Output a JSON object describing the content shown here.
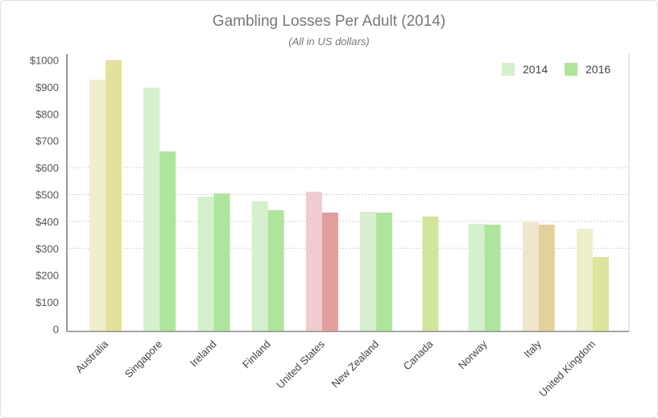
{
  "chart_data": {
    "type": "bar",
    "title": "Gambling Losses Per Adult (2014)",
    "subtitle": "(All in US dollars)",
    "xlabel": "",
    "ylabel": "",
    "ylim": [
      0,
      1000
    ],
    "yticks": [
      "0",
      "$100",
      "$200",
      "$300",
      "$400",
      "$500",
      "$600",
      "$700",
      "$800",
      "$900",
      "$1000"
    ],
    "grid": "dashed horizontal at $300–$600",
    "legend_position": "top-right",
    "categories": [
      "Australia",
      "Singapore",
      "Ireland",
      "Finland",
      "United States",
      "New Zealand",
      "Canada",
      "Norway",
      "Italy",
      "United Kingdom"
    ],
    "series": [
      {
        "name": "2014",
        "values": [
          927,
          897,
          492,
          475,
          510,
          436,
          null,
          391,
          397,
          373
        ]
      },
      {
        "name": "2016",
        "values": [
          1000,
          660,
          504,
          442,
          433,
          433,
          418,
          388,
          388,
          268
        ]
      }
    ],
    "legend_colors": {
      "2014": "#d5f0cd",
      "2016": "#ade59c"
    },
    "bar_colors": [
      [
        "#efefcb",
        "#e3e29b"
      ],
      [
        "#d5f0cd",
        "#ade59c"
      ],
      [
        "#d5f0cd",
        "#ade59c"
      ],
      [
        "#d5f0cd",
        "#ade59c"
      ],
      [
        "#f0cccc",
        "#e39e9e"
      ],
      [
        "#d5f0cd",
        "#ade59c"
      ],
      [
        "#d3e49b",
        "#d3e49b"
      ],
      [
        "#d5f0cd",
        "#ade59c"
      ],
      [
        "#f1e6cc",
        "#e3d09c"
      ],
      [
        "#eef0cc",
        "#dde49b"
      ]
    ]
  }
}
